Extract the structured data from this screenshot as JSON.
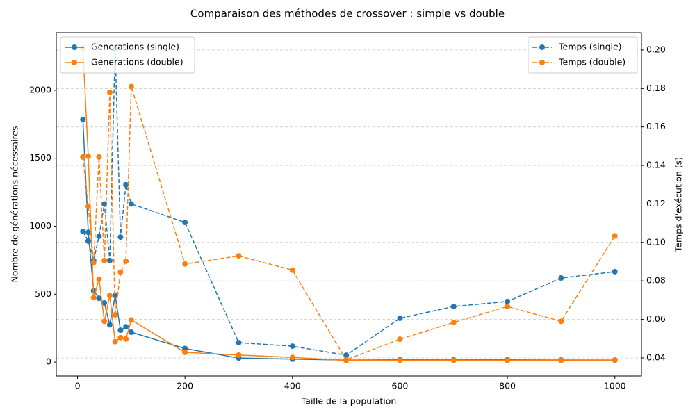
{
  "chart_data": {
    "type": "line",
    "title": "Comparaison des méthodes de crossover : simple vs double",
    "x_label": "Taille de la population",
    "y_label": "Nombre de générations nécessaires",
    "y2_label": "Temps d'exécution (s)",
    "x": [
      10,
      20,
      30,
      40,
      50,
      60,
      70,
      80,
      90,
      100,
      200,
      300,
      400,
      500,
      600,
      700,
      800,
      900,
      1000
    ],
    "xlim": [
      -39.5,
      1049.5
    ],
    "xticks": [
      0,
      200,
      400,
      600,
      800,
      1000
    ],
    "ylim": [
      -102,
      2424
    ],
    "yticks": [
      0,
      500,
      1000,
      1500,
      2000
    ],
    "y2lim": [
      0.0306,
      0.209
    ],
    "y2ticks": [
      0.04,
      0.06,
      0.08,
      {
        "value": 0.1,
        "label": "0.10"
      },
      0.12,
      0.14,
      0.16,
      0.18,
      {
        "value": 0.2,
        "label": "0.20"
      }
    ],
    "grid": "y2",
    "legend_y": "upper left",
    "legend_y2": "upper right",
    "series": [
      {
        "name": "Generations (single)",
        "color": "#1f77b4",
        "axis": "y",
        "linestyle": "solid",
        "values": [
          1785,
          955,
          525,
          470,
          435,
          275,
          490,
          235,
          260,
          220,
          100,
          30,
          22,
          15,
          17,
          16,
          16,
          15,
          15
        ]
      },
      {
        "name": "Generations (double)",
        "color": "#ff7f0e",
        "axis": "y",
        "linestyle": "solid",
        "values": [
          2310,
          1515,
          475,
          610,
          300,
          490,
          150,
          180,
          170,
          310,
          72,
          52,
          35,
          12,
          14,
          13,
          12,
          12,
          13
        ]
      },
      {
        "name": "Temps (single)",
        "color": "#1f77b4",
        "axis": "y2",
        "linestyle": "dashed",
        "values": [
          0.1057,
          0.1007,
          0.0906,
          0.1032,
          0.12,
          0.0906,
          0.2007,
          0.1028,
          0.13,
          0.12,
          0.1104,
          0.0479,
          0.0461,
          0.0414,
          0.0606,
          0.0667,
          0.0693,
          0.0815,
          0.0848
        ]
      },
      {
        "name": "Temps (double)",
        "color": "#ff7f0e",
        "axis": "y2",
        "linestyle": "dashed",
        "values": [
          0.1444,
          0.1187,
          0.0895,
          0.1444,
          0.0906,
          0.178,
          0.0624,
          0.0846,
          0.0902,
          0.181,
          0.0888,
          0.093,
          0.0856,
          0.039,
          0.0497,
          0.0584,
          0.0667,
          0.059,
          0.1034
        ]
      }
    ]
  }
}
